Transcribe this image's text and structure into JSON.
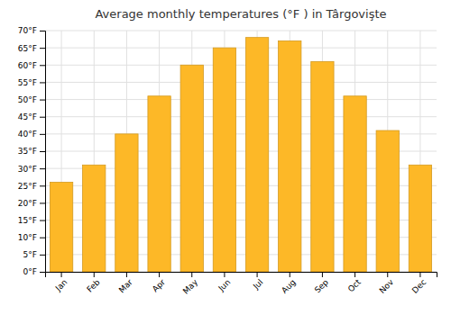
{
  "chart_data": {
    "type": "bar",
    "title": "Average monthly temperatures (°F ) in Târgovişte",
    "categories": [
      "Jan",
      "Feb",
      "Mar",
      "Apr",
      "May",
      "Jun",
      "Jul",
      "Aug",
      "Sep",
      "Oct",
      "Nov",
      "Dec"
    ],
    "values": [
      26,
      31,
      40,
      51,
      60,
      65,
      68,
      67,
      61,
      51,
      41,
      31
    ],
    "color": "#FDB827",
    "ylim": [
      0,
      70
    ],
    "yticks": [
      {
        "value": 0,
        "label": "0°F"
      },
      {
        "value": 5,
        "label": "5°F"
      },
      {
        "value": 10,
        "label": "10°F"
      },
      {
        "value": 15,
        "label": "15°F"
      },
      {
        "value": 20,
        "label": "20°F"
      },
      {
        "value": 25,
        "label": "25°F"
      },
      {
        "value": 30,
        "label": "30°F"
      },
      {
        "value": 35,
        "label": "35°F"
      },
      {
        "value": 40,
        "label": "40°F"
      },
      {
        "value": 45,
        "label": "45°F"
      },
      {
        "value": 50,
        "label": "50°F"
      },
      {
        "value": 55,
        "label": "55°F"
      },
      {
        "value": 60,
        "label": "60°F"
      },
      {
        "value": 65,
        "label": "65°F"
      },
      {
        "value": 70,
        "label": "70°F"
      }
    ],
    "grid": true
  }
}
